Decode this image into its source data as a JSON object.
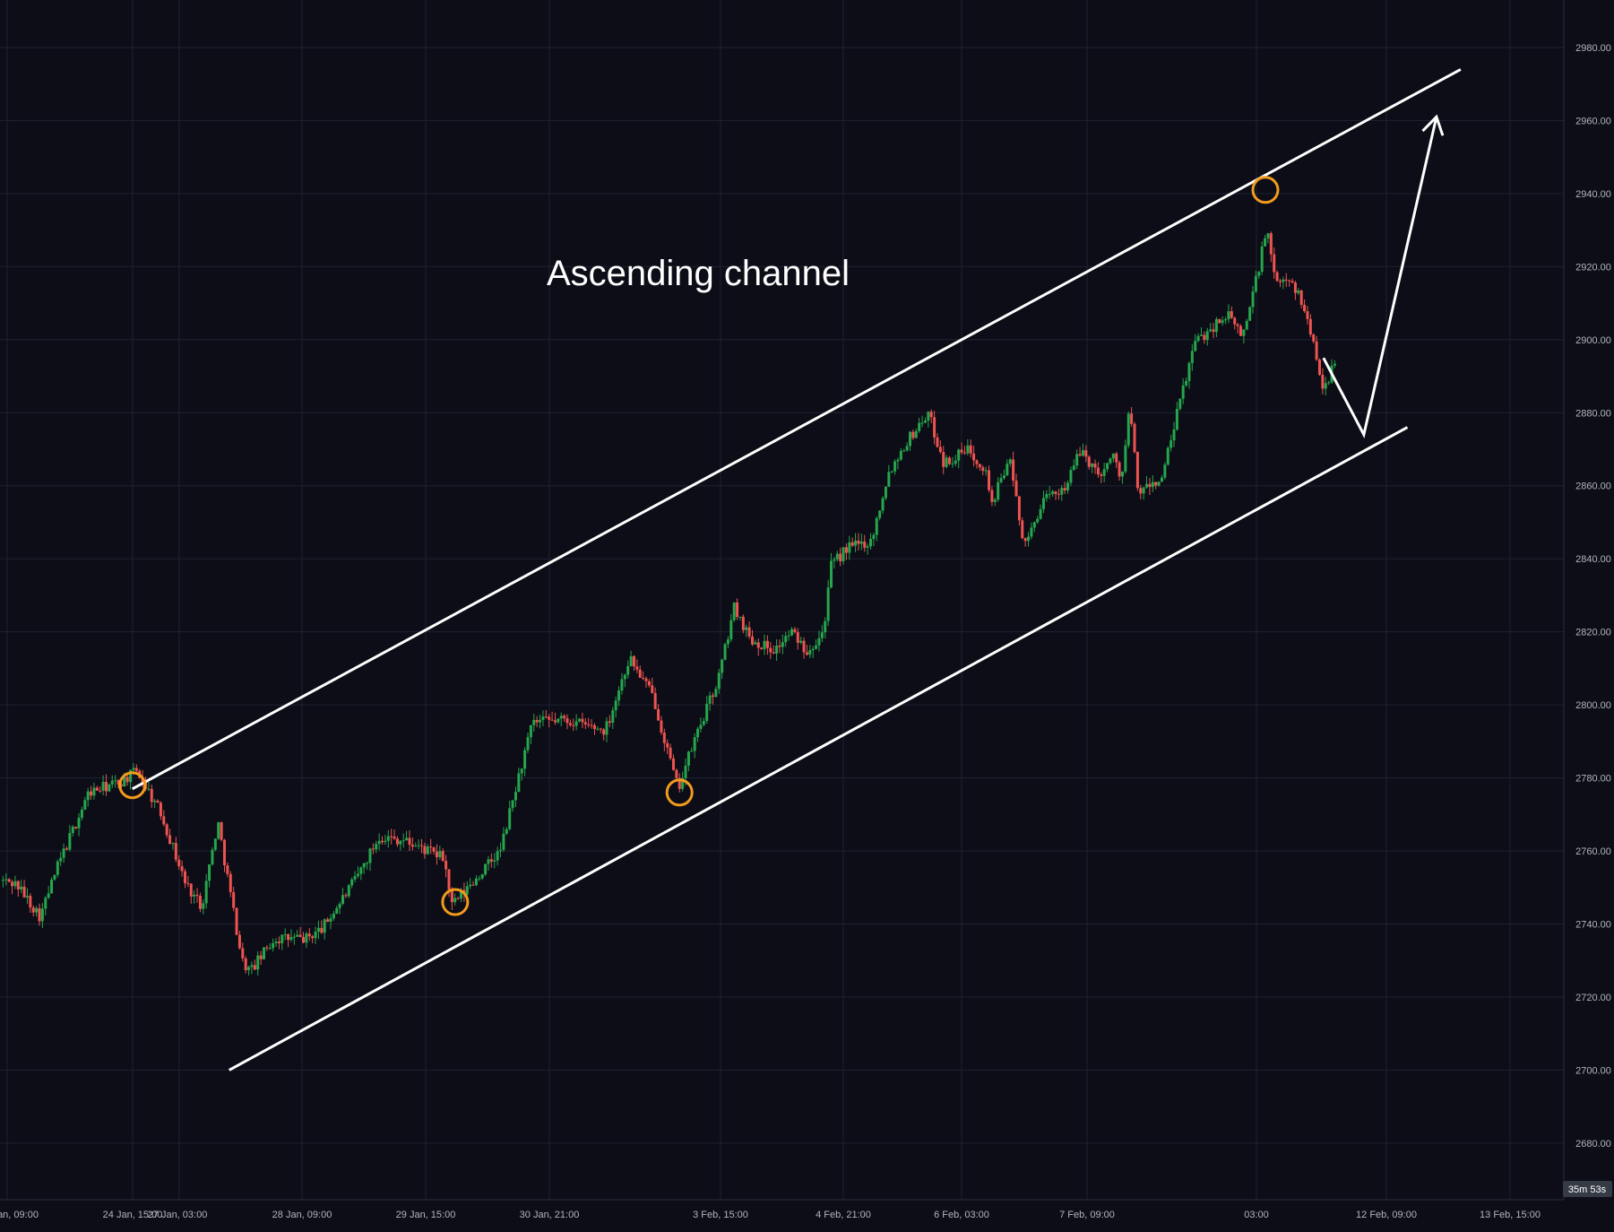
{
  "chart_data": {
    "type": "candlestick",
    "annotation": "Ascending channel",
    "x_tick_labels": [
      "an, 09:00",
      "24 Jan, 15:00",
      "27 Jan, 03:00",
      "28 Jan, 09:00",
      "29 Jan, 15:00",
      "30 Jan, 21:00",
      "3 Feb, 15:00",
      "4 Feb, 21:00",
      "6 Feb, 03:00",
      "7 Feb, 09:00",
      "03:00",
      "12 Feb, 09:00",
      "13 Feb, 15:00"
    ],
    "y_ticks": [
      2980,
      2960,
      2940,
      2920,
      2900,
      2880,
      2860,
      2840,
      2820,
      2800,
      2780,
      2760,
      2740,
      2720,
      2700,
      2680
    ],
    "y_tick_labels": [
      "2980.00",
      "2960.00",
      "2940.00",
      "2920.00",
      "2900.00",
      "2880.00",
      "2860.00",
      "2840.00",
      "2820.00",
      "2800.00",
      "2780.00",
      "2760.00",
      "2740.00",
      "2720.00",
      "2700.00",
      "2680.00"
    ],
    "ylim": [
      2664.5,
      2993
    ],
    "countdown": "35m 53s",
    "price_path": [
      [
        0,
        2752
      ],
      [
        0.01,
        2751
      ],
      [
        0.025,
        2742
      ],
      [
        0.035,
        2755
      ],
      [
        0.055,
        2776
      ],
      [
        0.075,
        2779
      ],
      [
        0.085,
        2782
      ],
      [
        0.1,
        2770
      ],
      [
        0.115,
        2751
      ],
      [
        0.125,
        2745
      ],
      [
        0.135,
        2768
      ],
      [
        0.15,
        2730
      ],
      [
        0.155,
        2727
      ],
      [
        0.17,
        2736
      ],
      [
        0.19,
        2736
      ],
      [
        0.2,
        2739
      ],
      [
        0.22,
        2752
      ],
      [
        0.235,
        2764
      ],
      [
        0.25,
        2763
      ],
      [
        0.265,
        2760
      ],
      [
        0.275,
        2758
      ],
      [
        0.28,
        2745
      ],
      [
        0.29,
        2750
      ],
      [
        0.31,
        2760
      ],
      [
        0.32,
        2778
      ],
      [
        0.33,
        2795
      ],
      [
        0.35,
        2796
      ],
      [
        0.375,
        2793
      ],
      [
        0.39,
        2813
      ],
      [
        0.405,
        2802
      ],
      [
        0.415,
        2785
      ],
      [
        0.42,
        2777
      ],
      [
        0.43,
        2790
      ],
      [
        0.445,
        2807
      ],
      [
        0.455,
        2827
      ],
      [
        0.465,
        2818
      ],
      [
        0.48,
        2815
      ],
      [
        0.49,
        2820
      ],
      [
        0.5,
        2815
      ],
      [
        0.51,
        2820
      ],
      [
        0.515,
        2838
      ],
      [
        0.525,
        2843
      ],
      [
        0.54,
        2845
      ],
      [
        0.55,
        2863
      ],
      [
        0.56,
        2871
      ],
      [
        0.575,
        2880
      ],
      [
        0.585,
        2866
      ],
      [
        0.6,
        2870
      ],
      [
        0.61,
        2865
      ],
      [
        0.615,
        2855
      ],
      [
        0.625,
        2868
      ],
      [
        0.635,
        2843
      ],
      [
        0.645,
        2855
      ],
      [
        0.66,
        2860
      ],
      [
        0.67,
        2870
      ],
      [
        0.68,
        2863
      ],
      [
        0.69,
        2868
      ],
      [
        0.695,
        2862
      ],
      [
        0.7,
        2882
      ],
      [
        0.705,
        2858
      ],
      [
        0.72,
        2862
      ],
      [
        0.73,
        2881
      ],
      [
        0.74,
        2899
      ],
      [
        0.76,
        2907
      ],
      [
        0.77,
        2901
      ],
      [
        0.78,
        2920
      ],
      [
        0.785,
        2931
      ],
      [
        0.79,
        2915
      ],
      [
        0.8,
        2917
      ],
      [
        0.81,
        2906
      ],
      [
        0.82,
        2887
      ],
      [
        0.827,
        2893
      ]
    ],
    "channel_upper": [
      [
        0.082,
        2777
      ],
      [
        0.905,
        2974
      ]
    ],
    "channel_lower": [
      [
        0.142,
        2700
      ],
      [
        0.872,
        2876
      ]
    ],
    "touch_points": [
      [
        0.082,
        2778
      ],
      [
        0.282,
        2746
      ],
      [
        0.421,
        2776
      ],
      [
        0.784,
        2941
      ]
    ],
    "projection_path": [
      [
        0.82,
        2895
      ],
      [
        0.845,
        2874
      ],
      [
        0.89,
        2961
      ]
    ],
    "colors": {
      "background": "#0c0d17",
      "grid": "#1e2230",
      "up": "#26a64c",
      "down": "#ef5350",
      "line": "#ffffff",
      "marker": "#f29a1d",
      "axis_text": "#b2b5be",
      "timer_bg": "#363a45"
    }
  }
}
